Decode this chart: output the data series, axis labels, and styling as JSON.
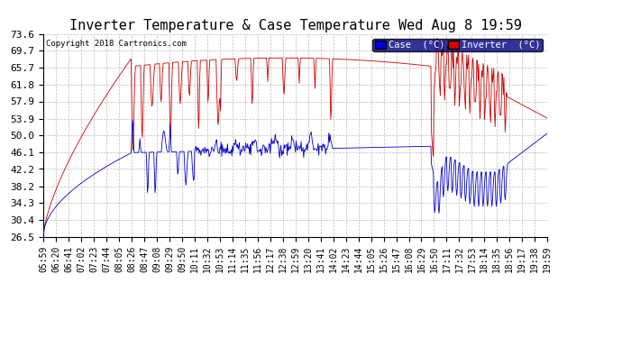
{
  "title": "Inverter Temperature & Case Temperature Wed Aug 8 19:59",
  "copyright": "Copyright 2018 Cartronics.com",
  "legend_case_label": "Case  (°C)",
  "legend_inverter_label": "Inverter  (°C)",
  "legend_case_color": "#0000dd",
  "legend_inverter_color": "#dd0000",
  "line_case_color": "#0000cc",
  "line_inverter_color": "#cc0000",
  "yticks": [
    26.5,
    30.4,
    34.3,
    38.2,
    42.2,
    46.1,
    50.0,
    53.9,
    57.9,
    61.8,
    65.7,
    69.7,
    73.6
  ],
  "ymin": 26.5,
  "ymax": 73.6,
  "background_color": "#ffffff",
  "plot_background": "#ffffff",
  "grid_color": "#bbbbbb",
  "title_fontsize": 11,
  "xlabel_fontsize": 7,
  "ylabel_fontsize": 8,
  "xtick_labels": [
    "05:59",
    "06:20",
    "06:41",
    "07:02",
    "07:23",
    "07:44",
    "08:05",
    "08:26",
    "08:47",
    "09:08",
    "09:29",
    "09:50",
    "10:11",
    "10:32",
    "10:53",
    "11:14",
    "11:35",
    "11:56",
    "12:17",
    "12:38",
    "12:59",
    "13:20",
    "13:41",
    "14:02",
    "14:23",
    "14:44",
    "15:05",
    "15:26",
    "15:47",
    "16:08",
    "16:29",
    "16:50",
    "17:11",
    "17:32",
    "17:53",
    "18:14",
    "18:35",
    "18:56",
    "19:17",
    "19:38",
    "19:59"
  ]
}
